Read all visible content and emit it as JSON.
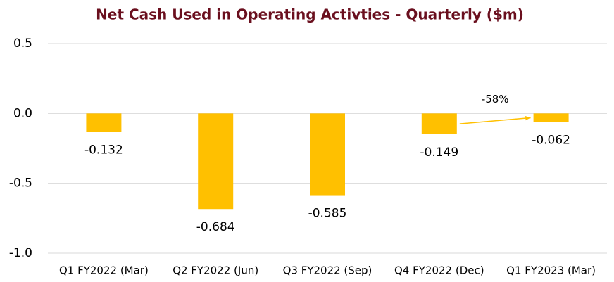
{
  "chart_data": {
    "type": "bar",
    "title": "Net Cash Used in Operating Activties - Quarterly ($m)",
    "categories": [
      "Q1 FY2022 (Mar)",
      "Q2 FY2022 (Jun)",
      "Q3 FY2022 (Sep)",
      "Q4 FY2022 (Dec)",
      "Q1 FY2023 (Mar)"
    ],
    "values": [
      -0.132,
      -0.684,
      -0.585,
      -0.149,
      -0.062
    ],
    "color": "#ffc000",
    "ylim": [
      -1,
      0.5
    ],
    "yticks": [
      {
        "value": -1,
        "label": "-1.0"
      },
      -0.5,
      {
        "value": 0,
        "label": "0.0"
      },
      0.5
    ],
    "grid": true,
    "annotation": "-58%"
  }
}
